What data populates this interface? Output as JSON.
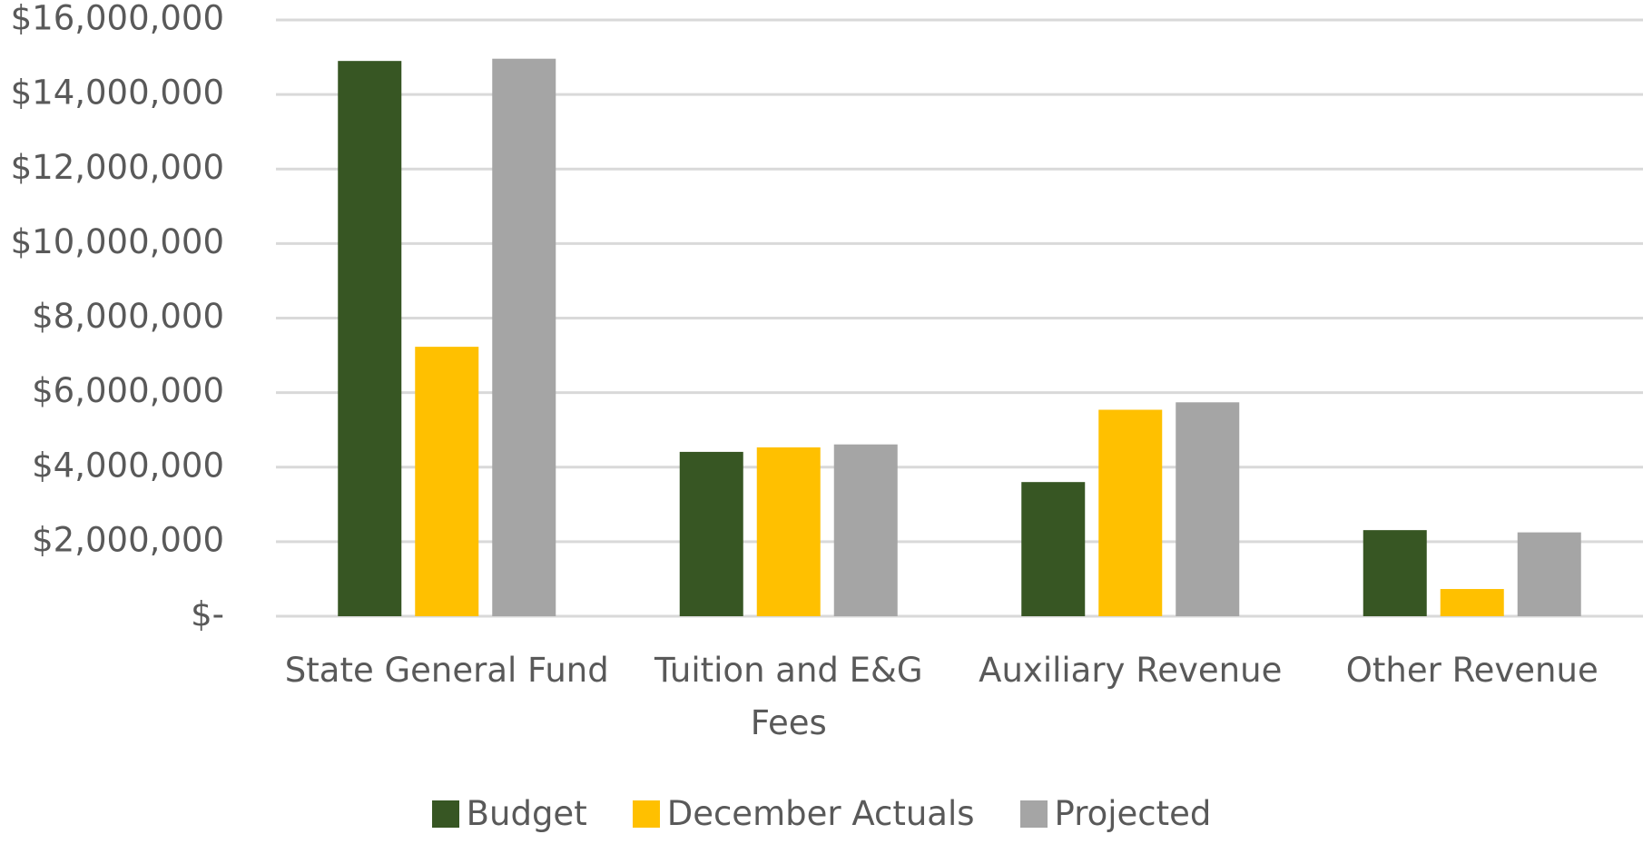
{
  "chart_data": {
    "type": "bar",
    "categories": [
      "State General Fund",
      "Tuition and E&G Fees",
      "Auxiliary Revenue",
      "Other Revenue"
    ],
    "series": [
      {
        "name": "Budget",
        "color": "#375623",
        "values": [
          14900000,
          4410000,
          3600000,
          2310000
        ]
      },
      {
        "name": "December Actuals",
        "color": "#ffc000",
        "values": [
          7230000,
          4530000,
          5540000,
          730000
        ]
      },
      {
        "name": "Projected",
        "color": "#a5a5a5",
        "values": [
          14960000,
          4610000,
          5740000,
          2250000
        ]
      }
    ],
    "ylim": [
      0,
      16000000
    ],
    "yticks": [
      {
        "value": 0,
        "label": "$-"
      },
      {
        "value": 2000000,
        "label": "$2,000,000"
      },
      {
        "value": 4000000,
        "label": "$4,000,000"
      },
      {
        "value": 6000000,
        "label": "$6,000,000"
      },
      {
        "value": 8000000,
        "label": "$8,000,000"
      },
      {
        "value": 10000000,
        "label": "$10,000,000"
      },
      {
        "value": 12000000,
        "label": "$12,000,000"
      },
      {
        "value": 14000000,
        "label": "$14,000,000"
      },
      {
        "value": 16000000,
        "label": "$16,000,000"
      }
    ],
    "grid": true,
    "legend": "bottom"
  }
}
